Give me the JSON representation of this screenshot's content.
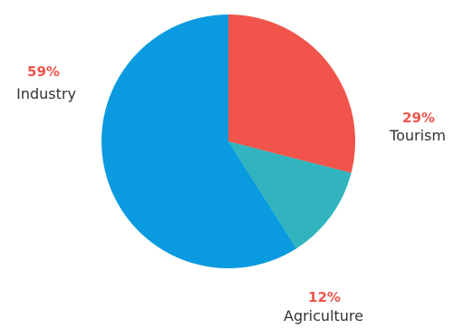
{
  "chart_data": {
    "type": "pie",
    "categories": [
      "Tourism",
      "Agriculture",
      "Industry"
    ],
    "values": [
      29,
      12,
      59
    ],
    "value_labels": [
      "29%",
      "12%",
      "59%"
    ],
    "colors": [
      "#f0544a",
      "#31b4be",
      "#0a9adf"
    ],
    "label_color": "#f0544a",
    "start_angle_deg": 0,
    "direction": "clockwise-from-top",
    "legend": "none"
  }
}
